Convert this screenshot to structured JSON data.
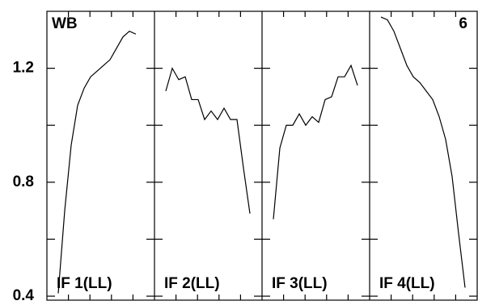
{
  "chart_data": {
    "type": "line",
    "color": "#000000",
    "ylim": [
      0.386,
      1.4
    ],
    "yticks": [
      0.4,
      0.8,
      1.2
    ],
    "yminorticks": [
      0.6,
      1.0
    ],
    "panels": [
      {
        "label": "IF 1(LL)",
        "corner_text": "WB",
        "values": [
          0.41,
          0.7,
          0.93,
          1.07,
          1.13,
          1.17,
          1.19,
          1.21,
          1.23,
          1.27,
          1.31,
          1.33,
          1.32
        ]
      },
      {
        "label": "IF 2(LL)",
        "values": [
          1.12,
          1.2,
          1.16,
          1.17,
          1.09,
          1.09,
          1.02,
          1.05,
          1.02,
          1.06,
          1.02,
          1.02,
          0.85,
          0.69
        ]
      },
      {
        "label": "IF 3(LL)",
        "values": [
          0.67,
          0.92,
          1.0,
          1.0,
          1.04,
          1.0,
          1.03,
          1.01,
          1.09,
          1.1,
          1.17,
          1.17,
          1.21,
          1.14
        ]
      },
      {
        "label": "IF 4(LL)",
        "corner_text": "6",
        "values": [
          1.38,
          1.37,
          1.33,
          1.27,
          1.21,
          1.17,
          1.15,
          1.12,
          1.09,
          1.03,
          0.95,
          0.82,
          0.62,
          0.43
        ]
      }
    ]
  }
}
